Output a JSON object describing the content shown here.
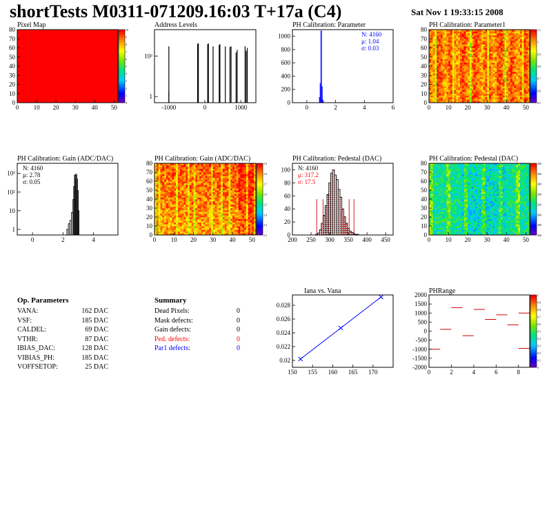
{
  "header": {
    "title": "shortTests M0311-071209.16:03 T+17a (C4)",
    "date": "Sat Nov  1 19:33:15 2008"
  },
  "op_parameters": {
    "title": "Op. Parameters",
    "items": [
      {
        "name": "VANA:",
        "value": "162 DAC"
      },
      {
        "name": "VSF:",
        "value": "185 DAC"
      },
      {
        "name": "CALDEL:",
        "value": "69 DAC"
      },
      {
        "name": "VTHR:",
        "value": "87 DAC"
      },
      {
        "name": "IBIAS_DAC:",
        "value": "128 DAC"
      },
      {
        "name": "VIBIAS_PH:",
        "value": "185 DAC"
      },
      {
        "name": "VOFFSETOP:",
        "value": "25 DAC"
      }
    ]
  },
  "summary": {
    "title": "Summary",
    "items": [
      {
        "name": "Dead Pixels:",
        "value": "0",
        "color": "#000000"
      },
      {
        "name": "Mask defects:",
        "value": "0",
        "color": "#000000"
      },
      {
        "name": "Gain defects:",
        "value": "0",
        "color": "#000000"
      },
      {
        "name": "Ped. defects:",
        "value": "0",
        "color": "#ff0000"
      },
      {
        "name": "Par1 defects:",
        "value": "0",
        "color": "#0000ff"
      }
    ]
  },
  "chart_data": [
    {
      "id": "pixelmap",
      "type": "heatmap",
      "title": "Pixel Map",
      "xlim": [
        0,
        52
      ],
      "ylim": [
        0,
        80
      ],
      "xticks": [
        "0",
        "10",
        "20",
        "30",
        "40",
        "50"
      ],
      "yticks": [
        "0",
        "10",
        "20",
        "30",
        "40",
        "50",
        "60",
        "70",
        "80"
      ],
      "zlim": [
        0,
        10
      ],
      "ztick_labels": [
        "0",
        "1",
        "2",
        "3",
        "4",
        "5",
        "6",
        "7",
        "8",
        "9",
        "10"
      ],
      "uniform_value": 10
    },
    {
      "id": "addresslevels",
      "type": "bar",
      "title": "Address Levels",
      "log_y": true,
      "xlim": [
        -1400,
        1420
      ],
      "xticks": [
        "-1000",
        "0",
        "1000"
      ],
      "ytick_values": [
        1,
        100
      ],
      "ytick_labels": [
        "1",
        "10²"
      ],
      "ylim": [
        0.5,
        2000
      ],
      "spikes": [
        [
          -1000,
          300
        ],
        [
          -1000,
          1.8
        ],
        [
          -200,
          400
        ],
        [
          -180,
          420
        ],
        [
          80,
          380
        ],
        [
          100,
          420
        ],
        [
          230,
          300
        ],
        [
          400,
          350
        ],
        [
          420,
          380
        ],
        [
          570,
          300
        ],
        [
          700,
          280
        ],
        [
          730,
          300
        ],
        [
          870,
          150
        ],
        [
          900,
          200
        ],
        [
          1120,
          300
        ],
        [
          1150,
          180
        ],
        [
          1180,
          250
        ]
      ]
    },
    {
      "id": "phcalparam",
      "type": "bar",
      "title": "PH Calibration: Parameter",
      "xlim": [
        -1,
        6
      ],
      "ylim": [
        0,
        1100
      ],
      "xticks": [
        "0",
        "2",
        "4",
        "6"
      ],
      "yticks": [
        "0",
        "200",
        "400",
        "600",
        "800",
        "1000"
      ],
      "x": [
        0.9,
        0.95,
        1.0,
        1.05,
        1.1,
        1.15
      ],
      "values": [
        80,
        290,
        1080,
        240,
        40,
        10
      ],
      "stats": [
        "N: 4160",
        "μ: 1.04",
        "σ: 0.03"
      ],
      "stats_color": "#0000ff",
      "color": "#0000ff"
    },
    {
      "id": "phcalparam1",
      "type": "heatmap",
      "title": "PH Calibration: Parameter1",
      "xlim": [
        0,
        52
      ],
      "ylim": [
        0,
        80
      ],
      "xticks": [
        "0",
        "10",
        "20",
        "30",
        "40",
        "50"
      ],
      "yticks": [
        "0",
        "10",
        "20",
        "30",
        "40",
        "50",
        "60",
        "70",
        "80"
      ],
      "zlim": [
        0.5,
        1.1
      ],
      "ztick_labels": [
        "0.5",
        "0.6",
        "0.7",
        "0.8",
        "0.9",
        "1",
        "1.1"
      ]
    },
    {
      "id": "gainhist",
      "type": "bar",
      "title": "PH Calibration: Gain (ADC/DAC)",
      "log_y": true,
      "xlim": [
        -1,
        5.6
      ],
      "xticks": [
        "0",
        "2",
        "4"
      ],
      "ytick_values": [
        1,
        10,
        100,
        1000
      ],
      "ytick_labels": [
        "1",
        "10",
        "10²",
        "10³"
      ],
      "ylim": [
        0.5,
        3500
      ],
      "x": [
        2.3,
        2.4,
        2.5,
        2.6,
        2.7,
        2.75,
        2.8,
        2.85,
        2.9,
        2.95,
        3.0
      ],
      "values": [
        1,
        2,
        3,
        8,
        40,
        200,
        800,
        900,
        500,
        120,
        10
      ],
      "stats": [
        "N: 4160",
        "μ: 2.78",
        "σ: 0.05"
      ],
      "stats_color": "#000000",
      "color": "#000000"
    },
    {
      "id": "gainmap",
      "type": "heatmap",
      "title": "PH Calibration: Gain (ADC/DAC)",
      "xlim": [
        0,
        52
      ],
      "ylim": [
        0,
        80
      ],
      "xticks": [
        "0",
        "10",
        "20",
        "30",
        "40",
        "50"
      ],
      "yticks": [
        "0",
        "10",
        "20",
        "30",
        "40",
        "50",
        "60",
        "70",
        "80"
      ],
      "zlim": [
        2.2,
        2.9
      ],
      "ztick_labels": [
        "2.2",
        "2.3",
        "2.4",
        "2.5",
        "2.6",
        "2.7",
        "2.8",
        "2.9"
      ]
    },
    {
      "id": "pedhist",
      "type": "bar",
      "title": "PH Calibration: Pedestal (DAC)",
      "xlim": [
        200,
        470
      ],
      "ylim": [
        0,
        110
      ],
      "xticks": [
        "200",
        "250",
        "300",
        "350",
        "400",
        "450"
      ],
      "yticks": [
        "0",
        "20",
        "40",
        "60",
        "80",
        "100"
      ],
      "x": [
        265,
        270,
        275,
        280,
        285,
        290,
        295,
        300,
        305,
        310,
        315,
        320,
        325,
        330,
        335,
        340,
        345,
        350,
        355,
        360,
        365,
        370,
        375
      ],
      "values": [
        1,
        3,
        8,
        18,
        30,
        45,
        62,
        80,
        95,
        100,
        92,
        85,
        70,
        58,
        40,
        28,
        18,
        10,
        6,
        4,
        2,
        1,
        1
      ],
      "stats": [
        "N: 4160",
        "μ: 317.2",
        "σ: 17.5"
      ],
      "stats_color": "#ff0000",
      "color": "#000000",
      "cut_lines": [
        265,
        282,
        352,
        365
      ]
    },
    {
      "id": "pedmap",
      "type": "heatmap",
      "title": "PH Calibration: Pedestal (DAC)",
      "xlim": [
        0,
        52
      ],
      "ylim": [
        0,
        80
      ],
      "xticks": [
        "0",
        "10",
        "20",
        "30",
        "40",
        "50"
      ],
      "yticks": [
        "0",
        "10",
        "20",
        "30",
        "40",
        "50",
        "60",
        "70",
        "80"
      ],
      "zlim": [
        260,
        400
      ],
      "ztick_labels": [
        "260",
        "280",
        "300",
        "320",
        "340",
        "360",
        "380",
        "400"
      ]
    },
    {
      "id": "iana",
      "type": "line",
      "title": "Iana vs. Vana",
      "xlim": [
        150,
        175
      ],
      "ylim": [
        0.019,
        0.0295
      ],
      "xticks": [
        "150",
        "155",
        "160",
        "165",
        "170"
      ],
      "yticks": [
        "0.02",
        "0.022",
        "0.024",
        "0.026",
        "0.028"
      ],
      "x": [
        152,
        162,
        172
      ],
      "values": [
        0.0202,
        0.0247,
        0.0292
      ],
      "color": "#0000ff"
    },
    {
      "id": "phrange",
      "type": "scatter",
      "title": "PHRange",
      "xlim": [
        0,
        9
      ],
      "ylim": [
        -2000,
        2000
      ],
      "xticks": [
        "0",
        "2",
        "4",
        "6",
        "8"
      ],
      "yticks": [
        "-2000",
        "-1500",
        "-1000",
        "-500",
        "0",
        "500",
        "1000",
        "1500",
        "2000"
      ],
      "zlim": [
        0,
        1
      ],
      "ztick_labels": [
        "0",
        "0.1",
        "0.2",
        "0.3",
        "0.4",
        "0.5",
        "0.6",
        "0.7",
        "0.8",
        "0.9",
        "1"
      ],
      "segments": [
        [
          0,
          -1000
        ],
        [
          1,
          100
        ],
        [
          2,
          1300
        ],
        [
          3,
          -250
        ],
        [
          4,
          1200
        ],
        [
          5,
          650
        ],
        [
          6,
          900
        ],
        [
          7,
          350
        ],
        [
          8,
          1000
        ],
        [
          8,
          -950
        ]
      ],
      "color": "#cc0000"
    }
  ]
}
